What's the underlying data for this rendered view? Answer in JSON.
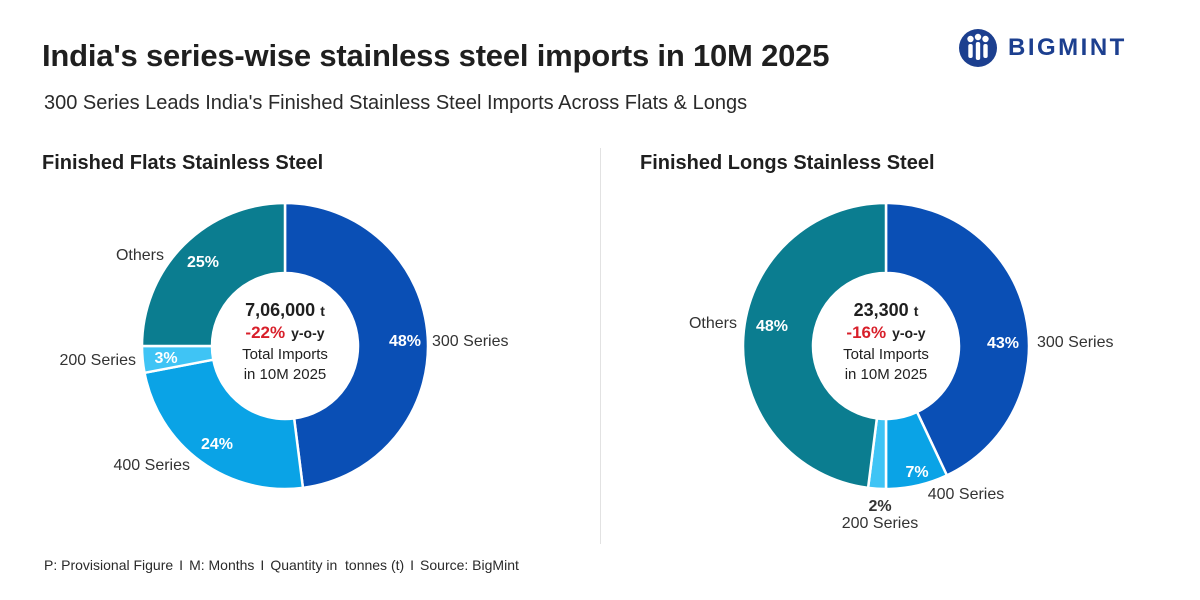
{
  "header": {
    "title": "India's series-wise stainless steel imports in 10M 2025",
    "subtitle": "300 Series Leads India's Finished Stainless Steel Imports Across Flats & Longs",
    "logo_text": "BIGMINT"
  },
  "chart_data": [
    {
      "type": "pie",
      "title": "Finished Flats Stainless Steel",
      "categories": [
        "300 Series",
        "400 Series",
        "200 Series",
        "Others"
      ],
      "values": [
        48,
        24,
        3,
        25
      ],
      "value_labels": [
        "48%",
        "24%",
        "3%",
        "25%"
      ],
      "colors": [
        "#0a4fb5",
        "#0aa3e6",
        "#3fc4f5",
        "#0b7d90"
      ],
      "center": {
        "total_value": "7,06,000",
        "total_unit": "t",
        "change": "-22%",
        "change_suffix": "y-o-y",
        "line1": "Total Imports",
        "line2": "in 10M 2025"
      }
    },
    {
      "type": "pie",
      "title": "Finished Longs Stainless Steel",
      "categories": [
        "300 Series",
        "400 Series",
        "200 Series",
        "Others"
      ],
      "values": [
        43,
        7,
        2,
        48
      ],
      "value_labels": [
        "43%",
        "7%",
        "2%",
        "48%"
      ],
      "colors": [
        "#0a4fb5",
        "#0aa3e6",
        "#3fc4f5",
        "#0b7d90"
      ],
      "center": {
        "total_value": "23,300",
        "total_unit": "t",
        "change": "-16%",
        "change_suffix": "y-o-y",
        "line1": "Total Imports",
        "line2": "in 10M 2025"
      }
    }
  ],
  "footer": {
    "items": [
      "P: Provisional Figure",
      "M: Months",
      "Quantity in  tonnes (t)",
      "Source: BigMint"
    ],
    "separator": "I"
  },
  "colors": {
    "change_red": "#d81f2a",
    "brand": "#1c3f8f"
  }
}
